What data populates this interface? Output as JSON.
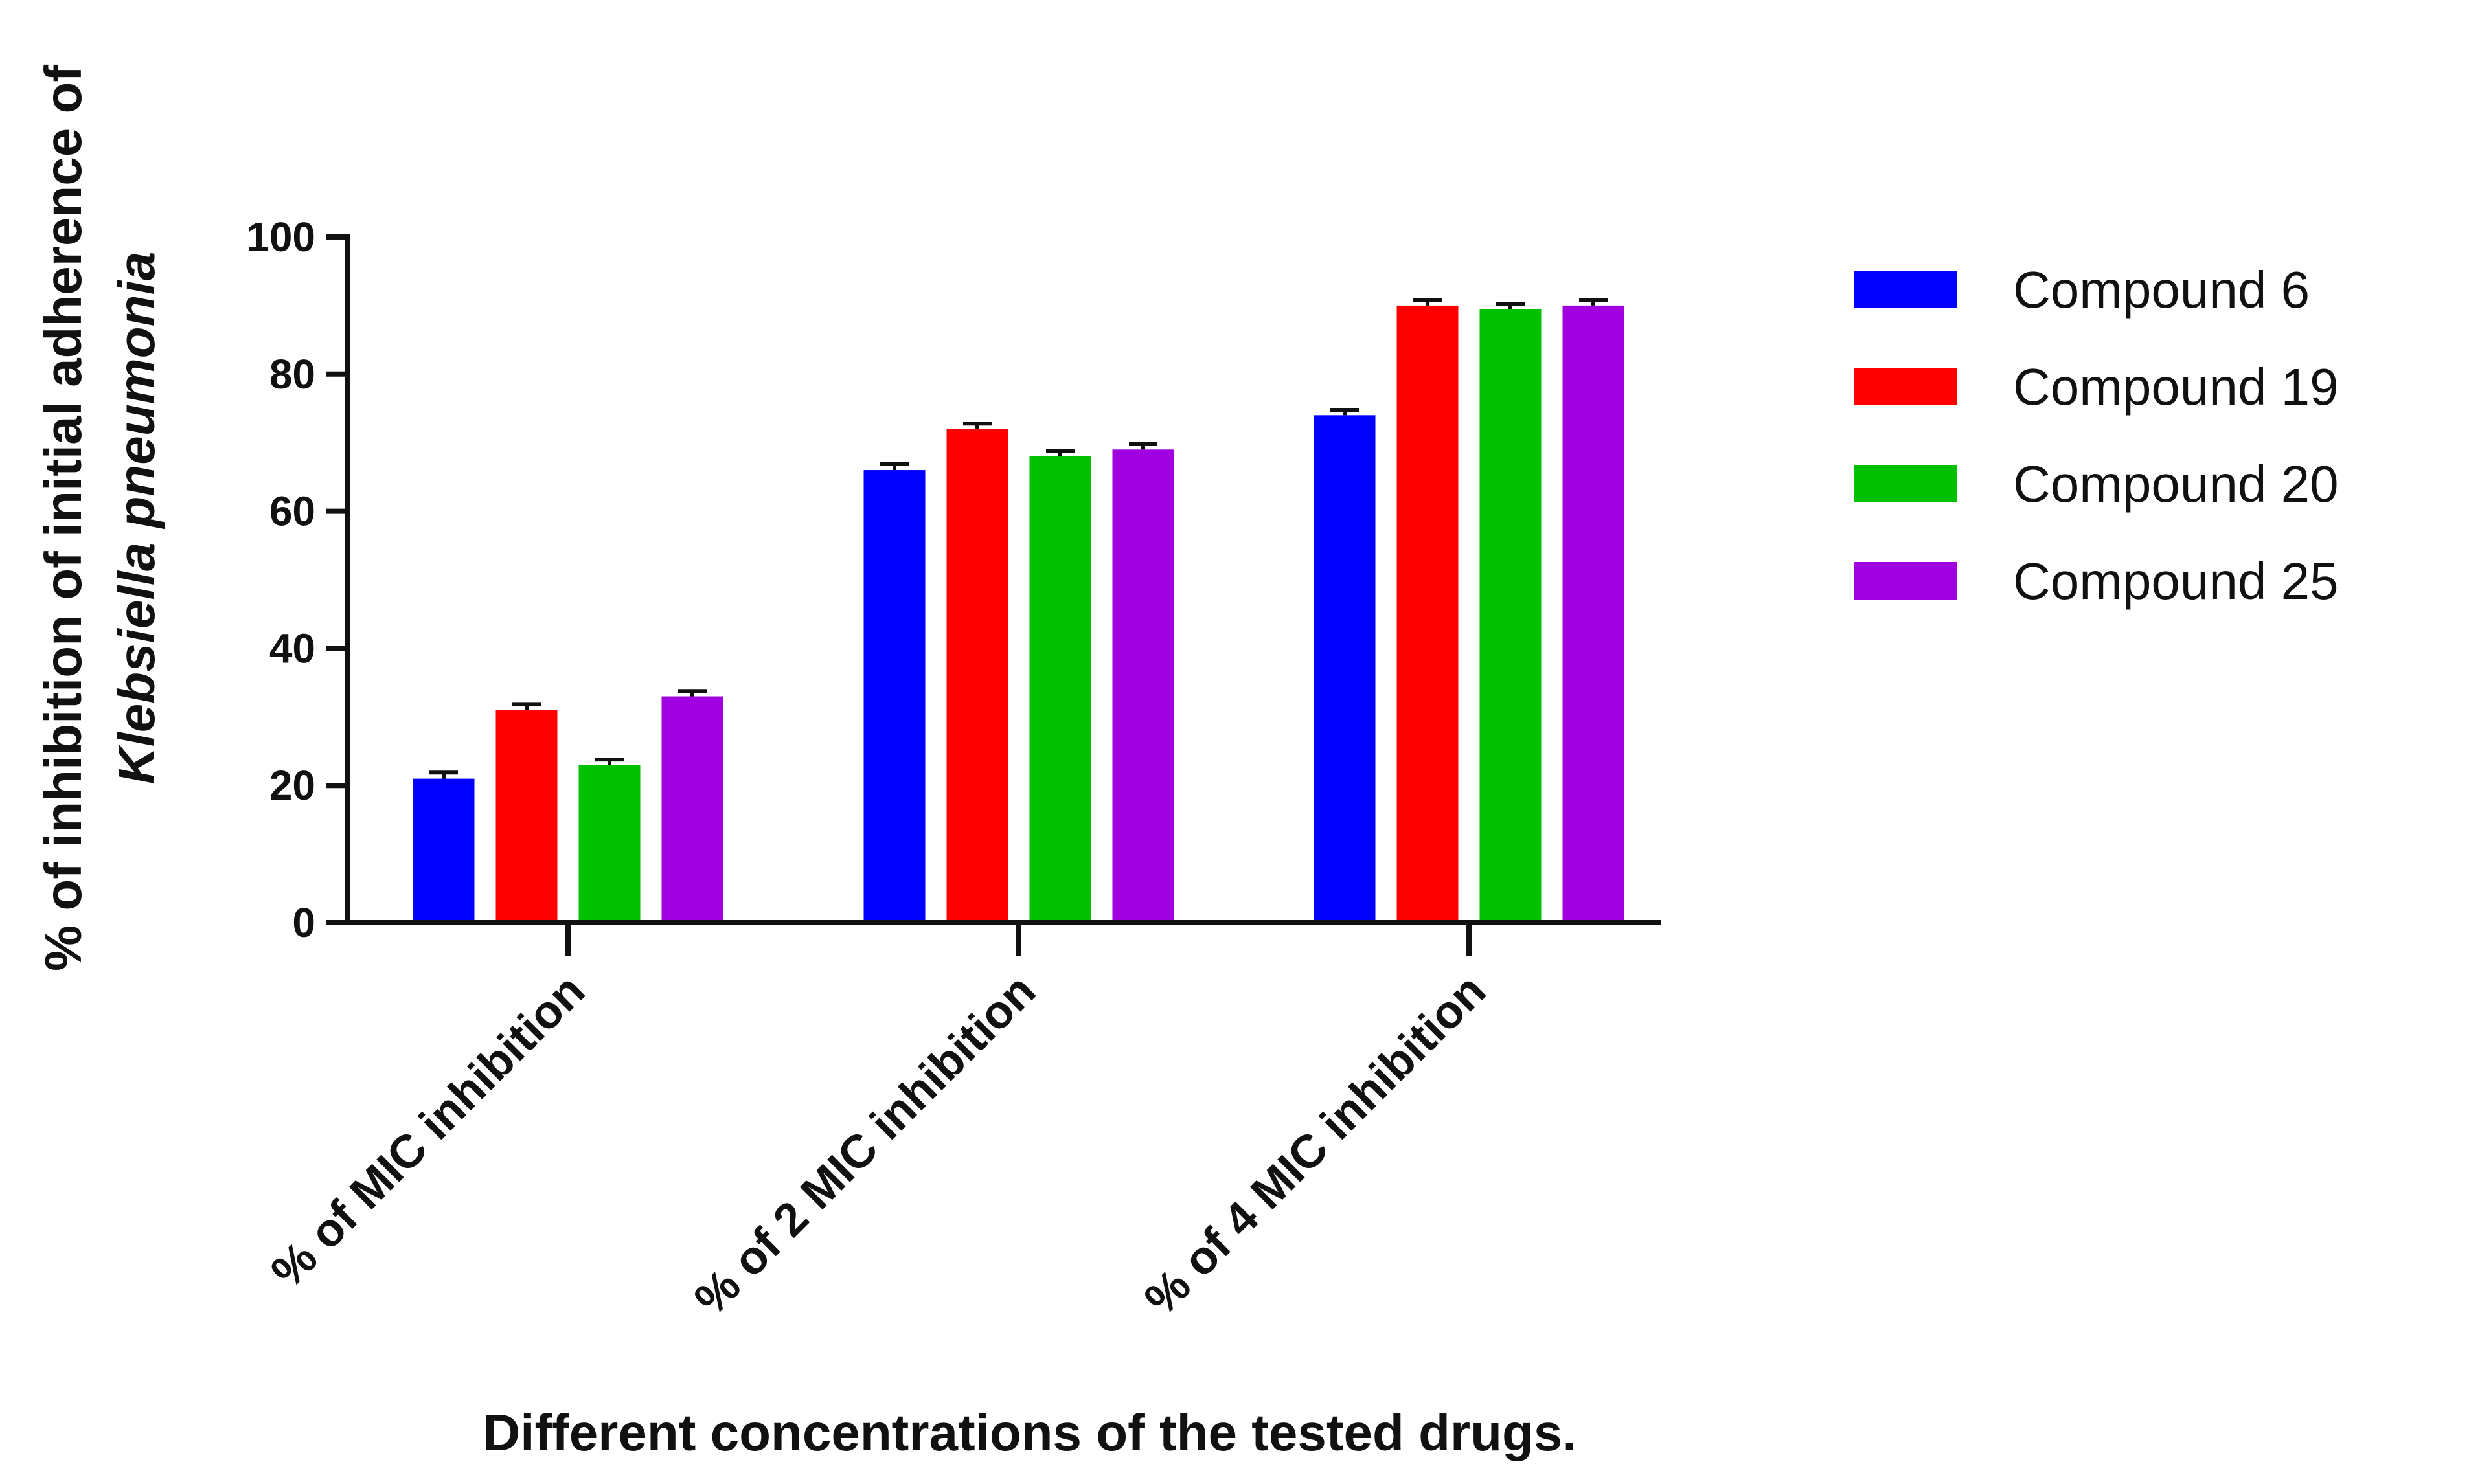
{
  "chart_data": {
    "type": "bar",
    "title": "",
    "xlabel": "Different concentrations of the tested drugs.",
    "ylabel_line1": "% of inhibition of initial adherence of",
    "ylabel_line2": "Klebsiella pneumonia",
    "ylim": [
      0,
      100
    ],
    "yticks": [
      "0",
      "20",
      "40",
      "60",
      "80",
      "100"
    ],
    "categories": [
      "% of MIC inhibition",
      "% of 2 MIC inhibition",
      "% of 4 MIC inhibition"
    ],
    "legend_position": "right",
    "grid": false,
    "series": [
      {
        "name": "Compound 6",
        "color": "#0000ff",
        "values": [
          21,
          66,
          74
        ],
        "errors": [
          0.6,
          0.6,
          0.5
        ]
      },
      {
        "name": "Compound 19",
        "color": "#ff0000",
        "values": [
          31,
          72,
          90
        ],
        "errors": [
          0.6,
          0.5,
          0.5
        ]
      },
      {
        "name": "Compound 20",
        "color": "#00c000",
        "values": [
          23,
          68,
          89.5
        ],
        "errors": [
          0.5,
          0.5,
          0.4
        ]
      },
      {
        "name": "Compound 25",
        "color": "#a000e0",
        "values": [
          33,
          69,
          90
        ],
        "errors": [
          0.5,
          0.5,
          0.5
        ]
      }
    ]
  }
}
